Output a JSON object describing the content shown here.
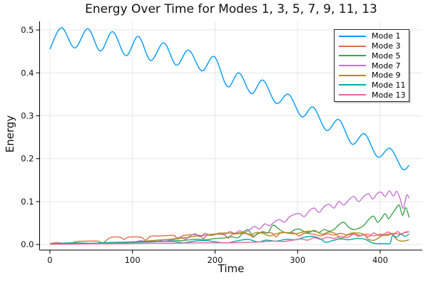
{
  "chart_data": {
    "type": "line",
    "title": "Energy Over Time for Modes 1, 3, 5, 7, 9, 11, 13",
    "xlabel": "Time",
    "ylabel": "Energy",
    "xlim": [
      -12.5,
      451
    ],
    "ylim": [
      -0.013,
      0.52
    ],
    "x_ticks": [
      0,
      100,
      200,
      300,
      400
    ],
    "y_ticks": [
      0.0,
      0.1,
      0.2,
      0.3,
      0.4,
      0.5
    ],
    "grid": true,
    "legend_position": "top-right",
    "grid_color": "#e7e7e7",
    "axis_color": "#000000",
    "series": [
      {
        "name": "Mode 1",
        "color": "#009AFA",
        "points": [
          [
            0,
            0.455
          ],
          [
            14,
            0.505
          ],
          [
            30,
            0.458
          ],
          [
            46,
            0.503
          ],
          [
            61,
            0.451
          ],
          [
            76,
            0.496
          ],
          [
            92,
            0.44
          ],
          [
            107,
            0.485
          ],
          [
            122,
            0.429
          ],
          [
            138,
            0.47
          ],
          [
            153,
            0.418
          ],
          [
            168,
            0.453
          ],
          [
            184,
            0.405
          ],
          [
            199,
            0.438
          ],
          [
            215,
            0.368
          ],
          [
            229,
            0.4
          ],
          [
            244,
            0.352
          ],
          [
            258,
            0.383
          ],
          [
            274,
            0.329
          ],
          [
            289,
            0.35
          ],
          [
            305,
            0.298
          ],
          [
            319,
            0.32
          ],
          [
            335,
            0.266
          ],
          [
            350,
            0.291
          ],
          [
            366,
            0.234
          ],
          [
            381,
            0.258
          ],
          [
            397,
            0.204
          ],
          [
            412,
            0.224
          ],
          [
            427,
            0.176
          ],
          [
            435,
            0.185
          ]
        ]
      },
      {
        "name": "Mode 3",
        "color": "#E26E47",
        "points": [
          [
            0,
            0.002
          ],
          [
            5,
            0.004
          ],
          [
            12,
            0.004
          ],
          [
            18,
            0.002
          ],
          [
            25,
            0.002
          ],
          [
            32,
            0.007
          ],
          [
            45,
            0.008
          ],
          [
            58,
            0.008
          ],
          [
            64,
            0.004
          ],
          [
            70,
            0.012
          ],
          [
            75,
            0.017
          ],
          [
            85,
            0.017
          ],
          [
            90,
            0.012
          ],
          [
            95,
            0.017
          ],
          [
            110,
            0.017
          ],
          [
            116,
            0.01
          ],
          [
            122,
            0.019
          ],
          [
            135,
            0.02
          ],
          [
            150,
            0.021
          ],
          [
            155,
            0.013
          ],
          [
            162,
            0.021
          ],
          [
            180,
            0.022
          ],
          [
            186,
            0.014
          ],
          [
            192,
            0.023
          ],
          [
            210,
            0.023
          ],
          [
            216,
            0.015
          ],
          [
            222,
            0.024
          ],
          [
            240,
            0.025
          ],
          [
            246,
            0.017
          ],
          [
            252,
            0.026
          ],
          [
            268,
            0.027
          ],
          [
            274,
            0.018
          ],
          [
            280,
            0.027
          ],
          [
            295,
            0.027
          ],
          [
            302,
            0.02
          ],
          [
            308,
            0.026
          ],
          [
            320,
            0.024
          ],
          [
            328,
            0.02
          ],
          [
            336,
            0.025
          ],
          [
            344,
            0.022
          ],
          [
            352,
            0.026
          ],
          [
            360,
            0.022
          ],
          [
            368,
            0.025
          ],
          [
            376,
            0.021
          ],
          [
            384,
            0.024
          ],
          [
            392,
            0.02
          ],
          [
            400,
            0.024
          ],
          [
            408,
            0.021
          ],
          [
            416,
            0.026
          ],
          [
            424,
            0.024
          ],
          [
            430,
            0.028
          ],
          [
            435,
            0.029
          ]
        ]
      },
      {
        "name": "Mode 5",
        "color": "#3DA44D",
        "points": [
          [
            0,
            0.001
          ],
          [
            20,
            0.001
          ],
          [
            40,
            0.002
          ],
          [
            60,
            0.003
          ],
          [
            70,
            0.004
          ],
          [
            90,
            0.004
          ],
          [
            100,
            0.005
          ],
          [
            120,
            0.006
          ],
          [
            140,
            0.008
          ],
          [
            150,
            0.01
          ],
          [
            160,
            0.009
          ],
          [
            175,
            0.012
          ],
          [
            190,
            0.011
          ],
          [
            200,
            0.014
          ],
          [
            210,
            0.015
          ],
          [
            220,
            0.018
          ],
          [
            228,
            0.016
          ],
          [
            235,
            0.03
          ],
          [
            240,
            0.034
          ],
          [
            246,
            0.02
          ],
          [
            252,
            0.025
          ],
          [
            258,
            0.03
          ],
          [
            264,
            0.027
          ],
          [
            270,
            0.045
          ],
          [
            276,
            0.038
          ],
          [
            282,
            0.03
          ],
          [
            290,
            0.027
          ],
          [
            296,
            0.034
          ],
          [
            302,
            0.036
          ],
          [
            308,
            0.03
          ],
          [
            314,
            0.028
          ],
          [
            320,
            0.033
          ],
          [
            326,
            0.028
          ],
          [
            332,
            0.035
          ],
          [
            338,
            0.031
          ],
          [
            344,
            0.035
          ],
          [
            350,
            0.046
          ],
          [
            356,
            0.052
          ],
          [
            362,
            0.04
          ],
          [
            368,
            0.035
          ],
          [
            374,
            0.038
          ],
          [
            380,
            0.044
          ],
          [
            386,
            0.058
          ],
          [
            392,
            0.066
          ],
          [
            397,
            0.052
          ],
          [
            402,
            0.062
          ],
          [
            406,
            0.072
          ],
          [
            410,
            0.06
          ],
          [
            414,
            0.07
          ],
          [
            418,
            0.081
          ],
          [
            423,
            0.092
          ],
          [
            427,
            0.068
          ],
          [
            431,
            0.086
          ],
          [
            435,
            0.063
          ]
        ]
      },
      {
        "name": "Mode 7",
        "color": "#C571D3",
        "points": [
          [
            0,
            0.001
          ],
          [
            20,
            0.002
          ],
          [
            40,
            0.002
          ],
          [
            60,
            0.003
          ],
          [
            80,
            0.004
          ],
          [
            100,
            0.005
          ],
          [
            110,
            0.009
          ],
          [
            120,
            0.006
          ],
          [
            130,
            0.01
          ],
          [
            140,
            0.008
          ],
          [
            150,
            0.013
          ],
          [
            158,
            0.017
          ],
          [
            164,
            0.012
          ],
          [
            170,
            0.02
          ],
          [
            176,
            0.025
          ],
          [
            182,
            0.018
          ],
          [
            188,
            0.026
          ],
          [
            194,
            0.021
          ],
          [
            200,
            0.023
          ],
          [
            206,
            0.027
          ],
          [
            212,
            0.024
          ],
          [
            218,
            0.03
          ],
          [
            224,
            0.026
          ],
          [
            230,
            0.032
          ],
          [
            236,
            0.028
          ],
          [
            242,
            0.035
          ],
          [
            248,
            0.042
          ],
          [
            254,
            0.036
          ],
          [
            260,
            0.048
          ],
          [
            266,
            0.044
          ],
          [
            272,
            0.053
          ],
          [
            278,
            0.058
          ],
          [
            284,
            0.052
          ],
          [
            290,
            0.064
          ],
          [
            296,
            0.07
          ],
          [
            302,
            0.072
          ],
          [
            308,
            0.065
          ],
          [
            314,
            0.078
          ],
          [
            320,
            0.085
          ],
          [
            326,
            0.075
          ],
          [
            332,
            0.088
          ],
          [
            338,
            0.094
          ],
          [
            344,
            0.085
          ],
          [
            350,
            0.1
          ],
          [
            356,
            0.092
          ],
          [
            362,
            0.104
          ],
          [
            368,
            0.112
          ],
          [
            374,
            0.1
          ],
          [
            380,
            0.112
          ],
          [
            386,
            0.118
          ],
          [
            391,
            0.106
          ],
          [
            396,
            0.118
          ],
          [
            401,
            0.122
          ],
          [
            406,
            0.112
          ],
          [
            411,
            0.125
          ],
          [
            416,
            0.113
          ],
          [
            420,
            0.124
          ],
          [
            424,
            0.108
          ],
          [
            428,
            0.084
          ],
          [
            432,
            0.115
          ],
          [
            435,
            0.108
          ]
        ]
      },
      {
        "name": "Mode 9",
        "color": "#AC8E1A",
        "points": [
          [
            0,
            0.001
          ],
          [
            30,
            0.002
          ],
          [
            60,
            0.003
          ],
          [
            90,
            0.005
          ],
          [
            110,
            0.007
          ],
          [
            130,
            0.01
          ],
          [
            150,
            0.013
          ],
          [
            165,
            0.016
          ],
          [
            180,
            0.02
          ],
          [
            195,
            0.023
          ],
          [
            205,
            0.026
          ],
          [
            215,
            0.027
          ],
          [
            225,
            0.026
          ],
          [
            235,
            0.028
          ],
          [
            242,
            0.022
          ],
          [
            250,
            0.028
          ],
          [
            258,
            0.026
          ],
          [
            266,
            0.02
          ],
          [
            274,
            0.025
          ],
          [
            282,
            0.028
          ],
          [
            290,
            0.026
          ],
          [
            298,
            0.025
          ],
          [
            306,
            0.029
          ],
          [
            314,
            0.031
          ],
          [
            322,
            0.03
          ],
          [
            330,
            0.024
          ],
          [
            338,
            0.029
          ],
          [
            346,
            0.025
          ],
          [
            352,
            0.014
          ],
          [
            358,
            0.02
          ],
          [
            364,
            0.026
          ],
          [
            372,
            0.027
          ],
          [
            380,
            0.024
          ],
          [
            386,
            0.012
          ],
          [
            393,
            0.01
          ],
          [
            400,
            0.018
          ],
          [
            407,
            0.023
          ],
          [
            414,
            0.024
          ],
          [
            420,
            0.012
          ],
          [
            426,
            0.008
          ],
          [
            431,
            0.009
          ],
          [
            435,
            0.011
          ]
        ]
      },
      {
        "name": "Mode 11",
        "color": "#00A9AD",
        "points": [
          [
            0,
            0.001
          ],
          [
            25,
            0.004
          ],
          [
            50,
            0.003
          ],
          [
            75,
            0.005
          ],
          [
            100,
            0.006
          ],
          [
            125,
            0.007
          ],
          [
            150,
            0.007
          ],
          [
            162,
            0.004
          ],
          [
            175,
            0.008
          ],
          [
            190,
            0.009
          ],
          [
            205,
            0.005
          ],
          [
            215,
            0.004
          ],
          [
            228,
            0.009
          ],
          [
            240,
            0.012
          ],
          [
            252,
            0.006
          ],
          [
            262,
            0.01
          ],
          [
            274,
            0.008
          ],
          [
            286,
            0.012
          ],
          [
            298,
            0.011
          ],
          [
            308,
            0.017
          ],
          [
            318,
            0.019
          ],
          [
            328,
            0.013
          ],
          [
            334,
            0.005
          ],
          [
            342,
            0.009
          ],
          [
            352,
            0.013
          ],
          [
            362,
            0.011
          ],
          [
            372,
            0.014
          ],
          [
            382,
            0.012
          ],
          [
            390,
            0.004
          ],
          [
            398,
            0.002
          ],
          [
            406,
            0.002
          ],
          [
            412,
            0.003
          ],
          [
            415,
            0.021
          ],
          [
            420,
            0.017
          ],
          [
            425,
            0.024
          ],
          [
            430,
            0.019
          ],
          [
            435,
            0.024
          ]
        ]
      },
      {
        "name": "Mode 13",
        "color": "#EE6397",
        "points": [
          [
            0,
            0.001
          ],
          [
            30,
            0.001
          ],
          [
            60,
            0.002
          ],
          [
            90,
            0.002
          ],
          [
            120,
            0.003
          ],
          [
            150,
            0.003
          ],
          [
            180,
            0.004
          ],
          [
            210,
            0.004
          ],
          [
            240,
            0.005
          ],
          [
            255,
            0.006
          ],
          [
            270,
            0.008
          ],
          [
            282,
            0.007
          ],
          [
            294,
            0.01
          ],
          [
            304,
            0.013
          ],
          [
            312,
            0.01
          ],
          [
            320,
            0.016
          ],
          [
            328,
            0.012
          ],
          [
            336,
            0.017
          ],
          [
            344,
            0.014
          ],
          [
            352,
            0.019
          ],
          [
            360,
            0.016
          ],
          [
            368,
            0.024
          ],
          [
            374,
            0.019
          ],
          [
            380,
            0.023
          ],
          [
            386,
            0.018
          ],
          [
            392,
            0.027
          ],
          [
            398,
            0.021
          ],
          [
            404,
            0.024
          ],
          [
            410,
            0.029
          ],
          [
            416,
            0.023
          ],
          [
            421,
            0.03
          ],
          [
            426,
            0.024
          ],
          [
            430,
            0.029
          ],
          [
            435,
            0.03
          ]
        ]
      }
    ]
  }
}
